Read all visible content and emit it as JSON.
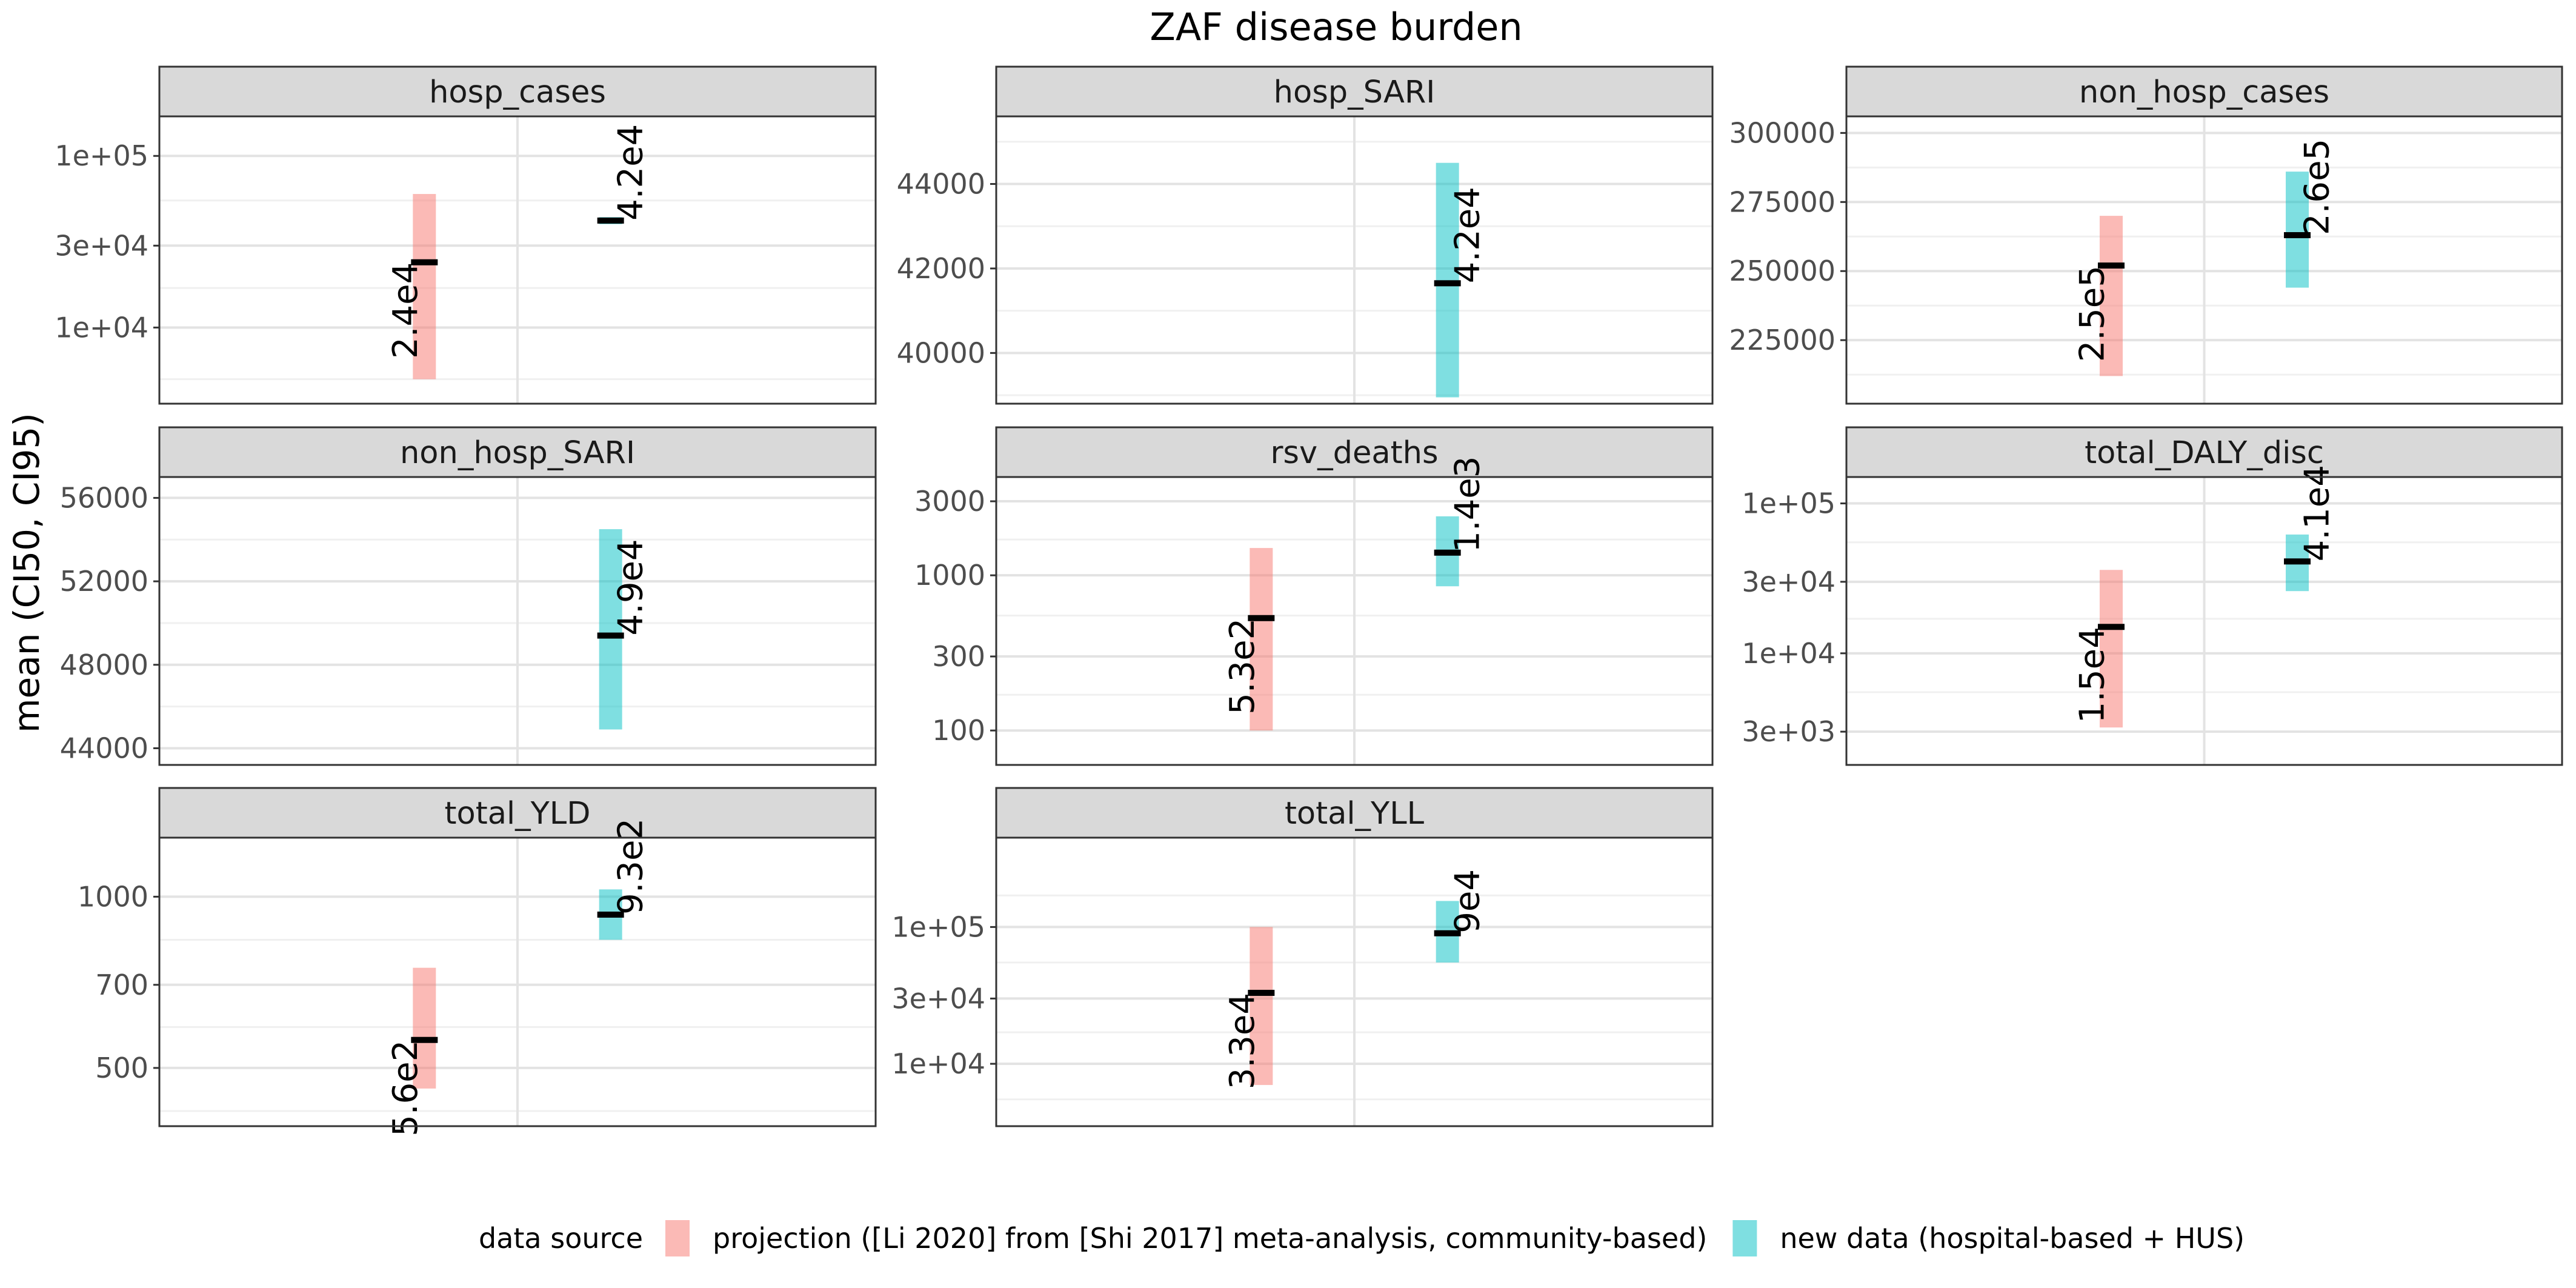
{
  "chart_data": {
    "type": "errorbar",
    "title": "ZAF disease burden",
    "ylabel": "mean (CI50, CI95)",
    "xlabel": "",
    "facets_layout": "3x3",
    "grid": true,
    "legend": {
      "position": "bottom",
      "title": "data source",
      "entries": [
        {
          "name": "projection ([Li 2020] from [Shi 2017] meta-analysis, community-based)",
          "color": "#F8766D"
        },
        {
          "name": "new data (hospital-based + HUS)",
          "color": "#00BFC4"
        }
      ]
    },
    "x": [
      "projection ([Li 2020] from [Shi 2017] meta-analysis, community-based)",
      "new data (hospital-based + HUS)"
    ],
    "facets": [
      {
        "name": "hosp_cases",
        "scale": "log",
        "ylim": [
          3600,
          170000
        ],
        "ticks": [
          {
            "v": 10000,
            "label": "1e+04"
          },
          {
            "v": 30000,
            "label": "3e+04"
          },
          {
            "v": 100000,
            "label": "1e+05"
          }
        ],
        "minor": [
          5000,
          17000,
          55000
        ],
        "series": [
          {
            "source": 0,
            "mean": 24000,
            "lo": 5000,
            "hi": 60000,
            "label": "2.4e4"
          },
          {
            "source": 1,
            "mean": 42000,
            "lo": 40000,
            "hi": 44000,
            "label": "4.2e4"
          }
        ]
      },
      {
        "name": "hosp_SARI",
        "scale": "linear",
        "ylim": [
          38800,
          45600
        ],
        "ticks": [
          {
            "v": 40000,
            "label": "40000"
          },
          {
            "v": 42000,
            "label": "42000"
          },
          {
            "v": 44000,
            "label": "44000"
          }
        ],
        "minor": [
          39000,
          41000,
          43000,
          45000
        ],
        "series": [
          {
            "source": 1,
            "mean": 41650,
            "lo": 38950,
            "hi": 44500,
            "label": "4.2e4"
          }
        ]
      },
      {
        "name": "non_hosp_cases",
        "scale": "linear",
        "ylim": [
          202000,
          306000
        ],
        "ticks": [
          {
            "v": 225000,
            "label": "225000"
          },
          {
            "v": 250000,
            "label": "250000"
          },
          {
            "v": 275000,
            "label": "275000"
          },
          {
            "v": 300000,
            "label": "300000"
          }
        ],
        "minor": [
          212500,
          237500,
          262500,
          287500
        ],
        "series": [
          {
            "source": 0,
            "mean": 252000,
            "lo": 212000,
            "hi": 270000,
            "label": "2.5e5"
          },
          {
            "source": 1,
            "mean": 263000,
            "lo": 244000,
            "hi": 286000,
            "label": "2.6e5"
          }
        ]
      },
      {
        "name": "non_hosp_SARI",
        "scale": "linear",
        "ylim": [
          43200,
          57000
        ],
        "ticks": [
          {
            "v": 44000,
            "label": "44000"
          },
          {
            "v": 48000,
            "label": "48000"
          },
          {
            "v": 52000,
            "label": "52000"
          },
          {
            "v": 56000,
            "label": "56000"
          }
        ],
        "minor": [
          46000,
          50000,
          54000
        ],
        "series": [
          {
            "source": 1,
            "mean": 49400,
            "lo": 44900,
            "hi": 54500,
            "label": "4.9e4"
          }
        ]
      },
      {
        "name": "rsv_deaths",
        "scale": "log",
        "ylim": [
          60,
          4300
        ],
        "ticks": [
          {
            "v": 100,
            "label": "100"
          },
          {
            "v": 300,
            "label": "300"
          },
          {
            "v": 1000,
            "label": "1000"
          },
          {
            "v": 3000,
            "label": "3000"
          }
        ],
        "minor": [
          170,
          550,
          1700
        ],
        "series": [
          {
            "source": 0,
            "mean": 530,
            "lo": 100,
            "hi": 1500,
            "label": "5.3e2"
          },
          {
            "source": 1,
            "mean": 1400,
            "lo": 850,
            "hi": 2400,
            "label": "1.4e3"
          }
        ]
      },
      {
        "name": "total_DALY_disc",
        "scale": "log",
        "ylim": [
          1800,
          150000
        ],
        "ticks": [
          {
            "v": 3000,
            "label": "3e+03"
          },
          {
            "v": 10000,
            "label": "1e+04"
          },
          {
            "v": 30000,
            "label": "3e+04"
          },
          {
            "v": 100000,
            "label": "1e+05"
          }
        ],
        "minor": [
          5500,
          17000,
          55000
        ],
        "series": [
          {
            "source": 0,
            "mean": 15000,
            "lo": 3200,
            "hi": 36000,
            "label": "1.5e4"
          },
          {
            "source": 1,
            "mean": 41000,
            "lo": 26000,
            "hi": 62000,
            "label": "4.1e4"
          }
        ]
      },
      {
        "name": "total_YLD",
        "scale": "log",
        "ylim": [
          395,
          1270
        ],
        "ticks": [
          {
            "v": 500,
            "label": "500"
          },
          {
            "v": 700,
            "label": "700"
          },
          {
            "v": 1000,
            "label": "1000"
          }
        ],
        "minor": [
          420,
          590,
          840
        ],
        "series": [
          {
            "source": 0,
            "mean": 560,
            "lo": 460,
            "hi": 750,
            "label": "5.6e2"
          },
          {
            "source": 1,
            "mean": 930,
            "lo": 840,
            "hi": 1030,
            "label": "9.3e2"
          }
        ]
      },
      {
        "name": "total_YLL",
        "scale": "log",
        "ylim": [
          3500,
          450000
        ],
        "ticks": [
          {
            "v": 10000,
            "label": "1e+04"
          },
          {
            "v": 30000,
            "label": "3e+04"
          },
          {
            "v": 100000,
            "label": "1e+05"
          }
        ],
        "minor": [
          5500,
          17000,
          55000,
          170000
        ],
        "series": [
          {
            "source": 0,
            "mean": 33000,
            "lo": 7000,
            "hi": 100000,
            "label": "3.3e4"
          },
          {
            "source": 1,
            "mean": 90000,
            "lo": 55000,
            "hi": 155000,
            "label": "9e4"
          }
        ]
      }
    ]
  }
}
